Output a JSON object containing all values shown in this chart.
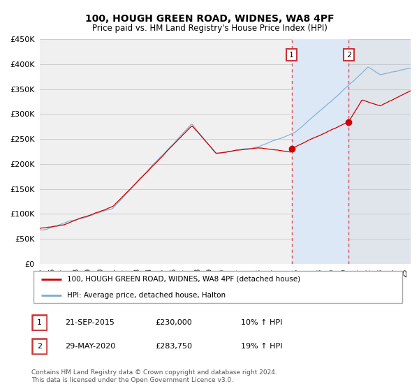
{
  "title": "100, HOUGH GREEN ROAD, WIDNES, WA8 4PF",
  "subtitle": "Price paid vs. HM Land Registry's House Price Index (HPI)",
  "ylim": [
    0,
    450000
  ],
  "yticks": [
    0,
    50000,
    100000,
    150000,
    200000,
    250000,
    300000,
    350000,
    400000,
    450000
  ],
  "sale1_date": "21-SEP-2015",
  "sale1_year": 2015.72,
  "sale1_price": 230000,
  "sale1_hpi": "10%",
  "sale2_date": "29-MAY-2020",
  "sale2_year": 2020.41,
  "sale2_price": 283750,
  "sale2_hpi": "19%",
  "legend_property": "100, HOUGH GREEN ROAD, WIDNES, WA8 4PF (detached house)",
  "legend_hpi": "HPI: Average price, detached house, Halton",
  "footer": "Contains HM Land Registry data © Crown copyright and database right 2024.\nThis data is licensed under the Open Government Licence v3.0.",
  "property_color": "#cc0000",
  "hpi_color": "#7aadd4",
  "shade_color": "#dce8f5",
  "plot_bg_color": "#f0f0f0",
  "grid_color": "#cccccc",
  "hatch_color": "#c8c8c8"
}
